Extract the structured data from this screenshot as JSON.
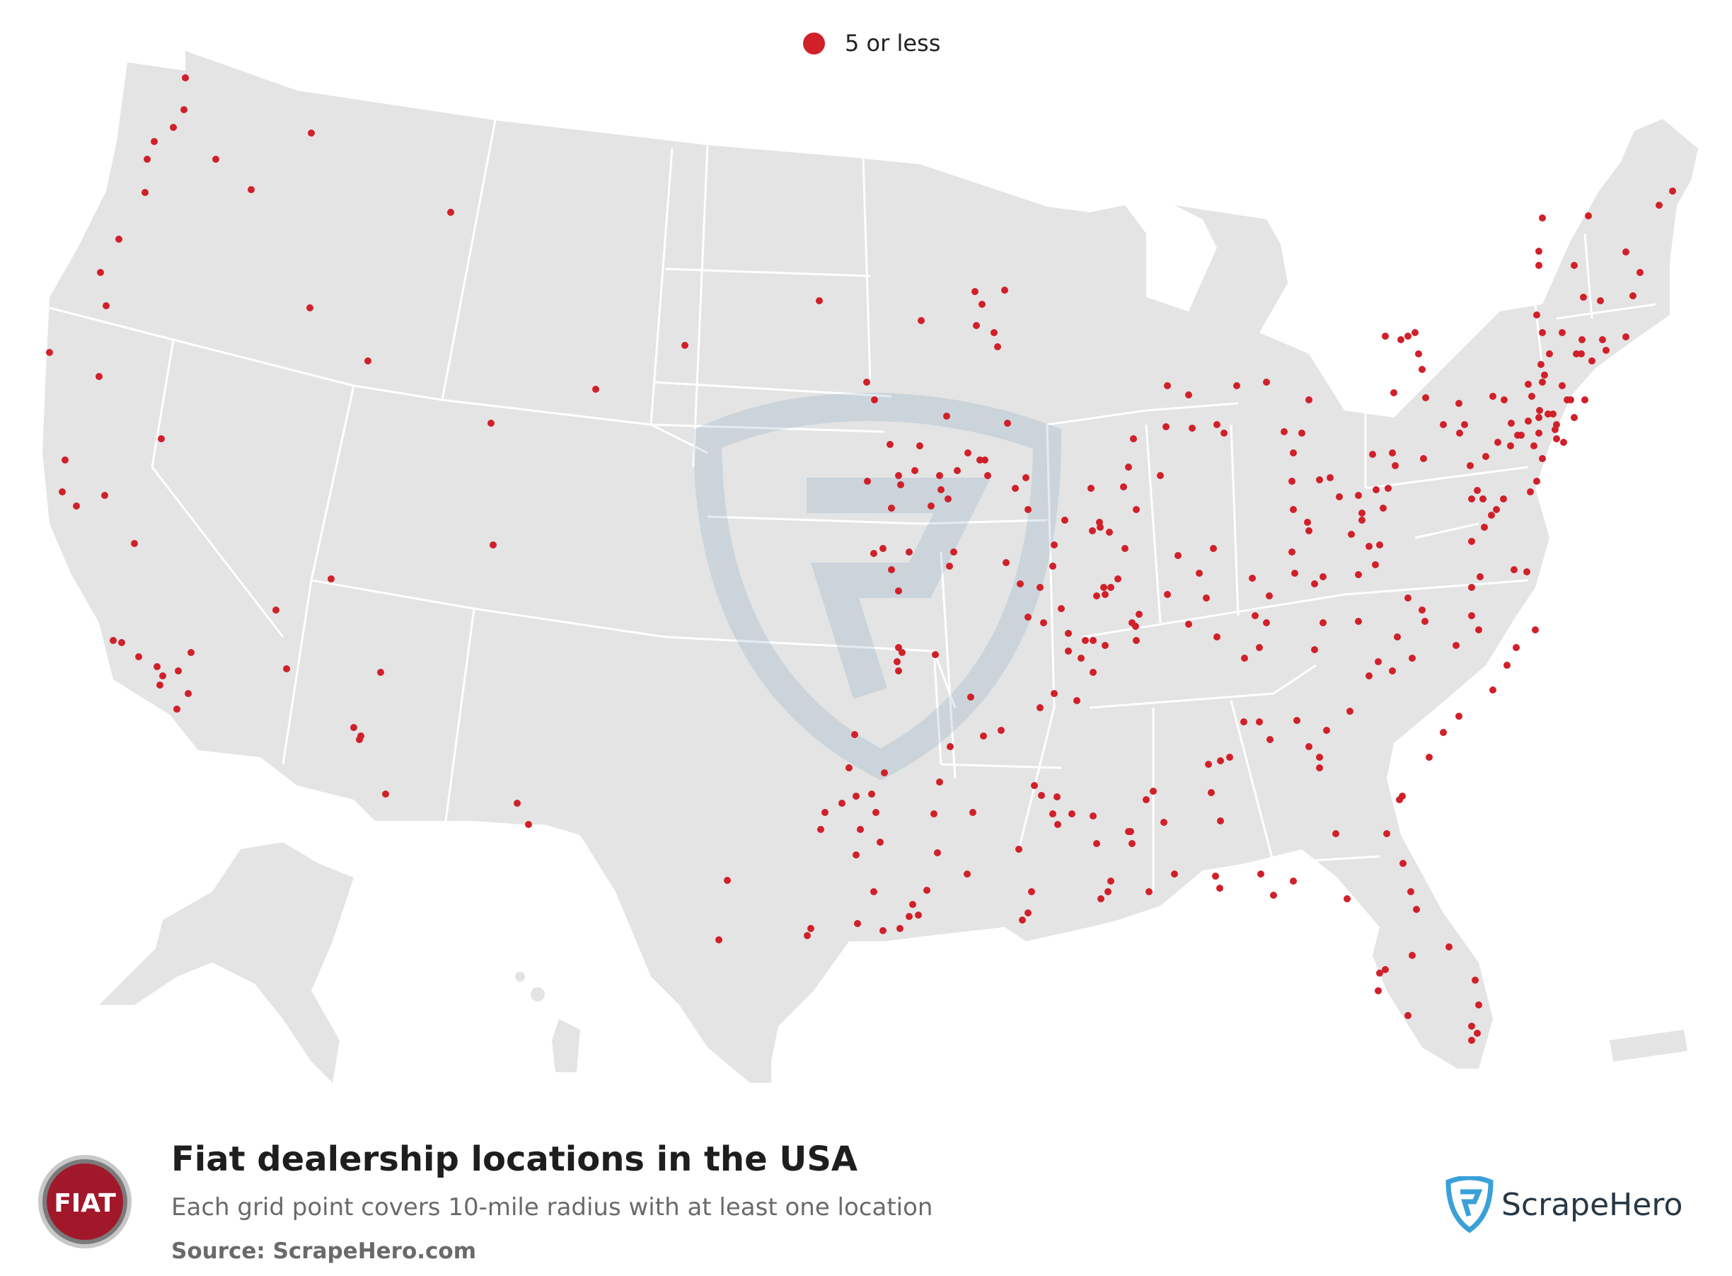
{
  "legend": {
    "label": "5 or less",
    "dot_color": "#d0202a"
  },
  "title": "Fiat dealership locations in the USA",
  "subtitle": "Each grid point covers 10-mile radius with at least one location",
  "source": "Source: ScrapeHero.com",
  "brand": {
    "name": "ScrapeHero",
    "color": "#3aa0d8"
  },
  "logo": {
    "text": "FIAT",
    "color": "#a1182a"
  },
  "colors": {
    "land": "#e4e4e4",
    "border": "#ffffff",
    "dot": "#d0202a"
  }
}
